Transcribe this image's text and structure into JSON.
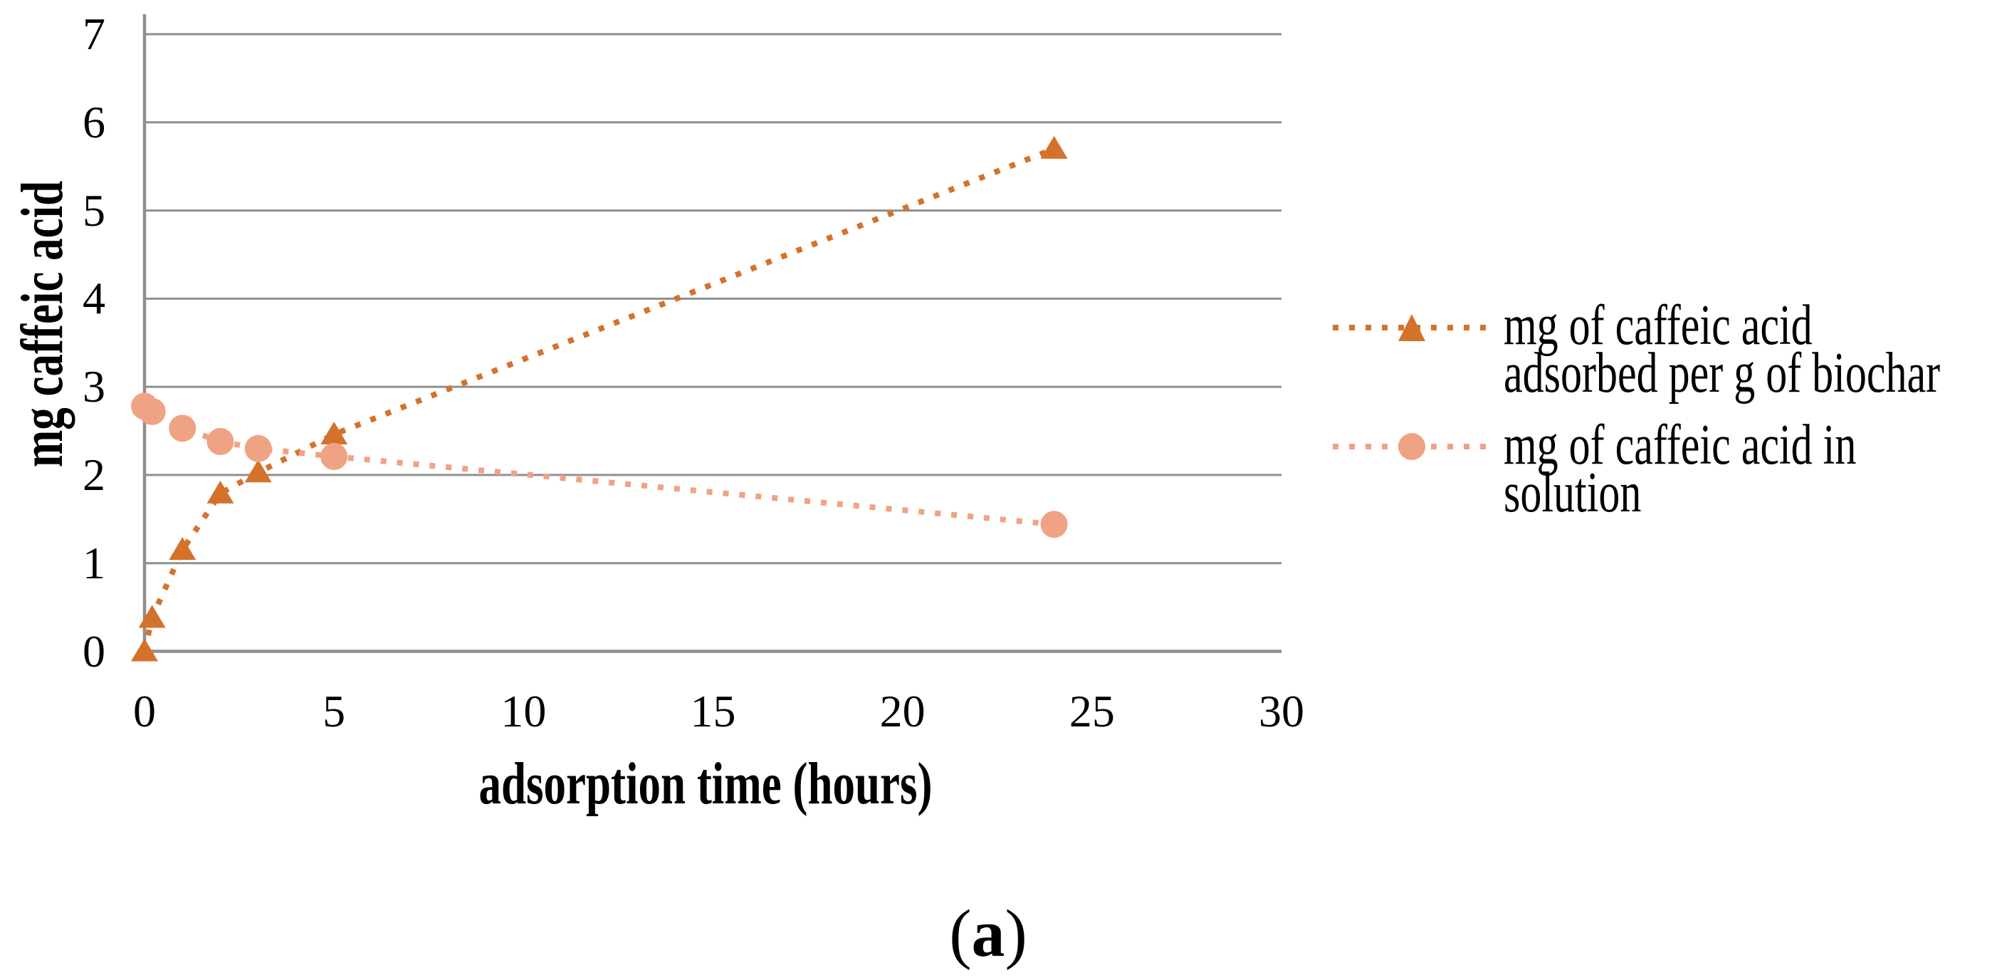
{
  "figure": {
    "caption": {
      "open": "(",
      "letter": "a",
      "close": ")"
    }
  },
  "chart_data": {
    "type": "line",
    "title": "",
    "xlabel": "adsorption time (hours)",
    "ylabel": "mg caffeic acid",
    "xlim": [
      0,
      30
    ],
    "ylim": [
      0,
      7
    ],
    "x_ticks": [
      0,
      5,
      10,
      15,
      20,
      25,
      30
    ],
    "y_ticks": [
      0,
      1,
      2,
      3,
      4,
      5,
      6,
      7
    ],
    "grid": "horizontal",
    "gridline_color": "#8F8F8F",
    "line_style": "dotted",
    "legend_position": "right",
    "x": [
      0,
      0.2,
      1,
      2,
      3,
      5,
      24
    ],
    "series": [
      {
        "name": "mg of caffeic acid adsorbed per g of biochar",
        "legend_lines": [
          "mg of caffeic acid",
          "adsorbed per g of biochar"
        ],
        "marker": "triangle",
        "color": "#D4722C",
        "values": [
          0,
          0.38,
          1.15,
          1.79,
          2.03,
          2.46,
          5.7
        ]
      },
      {
        "name": "mg of caffeic acid in solution",
        "legend_lines": [
          "mg of caffeic acid in",
          "solution"
        ],
        "marker": "circle",
        "color": "#F0A284",
        "values": [
          2.78,
          2.72,
          2.53,
          2.38,
          2.3,
          2.21,
          1.44
        ]
      }
    ]
  }
}
